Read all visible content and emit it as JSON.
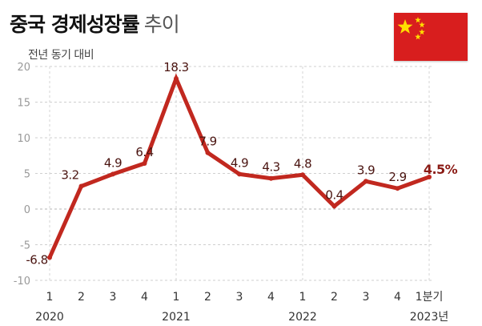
{
  "header": {
    "title_bold": "중국 경제성장률",
    "title_light": "추이",
    "ylabel": "전년 동기 대비"
  },
  "flag": {
    "name": "china-flag-icon",
    "color": "#d81e1e",
    "star_color": "#ffde00"
  },
  "chart_data": {
    "type": "line",
    "ylabel": "전년 동기 대비",
    "ylim": [
      -10,
      20
    ],
    "yticks": [
      -10,
      -5,
      0,
      5,
      10,
      15,
      20
    ],
    "ytick_labels": [
      "-10",
      "-5",
      "0",
      "5",
      "10",
      "15",
      "20"
    ],
    "grid": "horizontal-dashed",
    "x": [
      "1",
      "2",
      "3",
      "4",
      "1",
      "2",
      "3",
      "4",
      "1",
      "2",
      "3",
      "4",
      "1분기"
    ],
    "years": [
      {
        "label": "2020",
        "start": 0
      },
      {
        "label": "2021",
        "start": 4
      },
      {
        "label": "2022",
        "start": 8
      },
      {
        "label": "2023년",
        "start": 12
      }
    ],
    "series": [
      {
        "values": [
          -6.8,
          3.2,
          4.9,
          6.4,
          18.3,
          7.9,
          4.9,
          4.3,
          4.8,
          0.4,
          3.9,
          2.9,
          4.5
        ],
        "labels": [
          "-6.8",
          "3.2",
          "4.9",
          "6.4",
          "18.3",
          "7.9",
          "4.9",
          "4.3",
          "4.8",
          "0.4",
          "3.9",
          "2.9",
          "4.5%"
        ],
        "color": "#c1281f"
      }
    ]
  }
}
